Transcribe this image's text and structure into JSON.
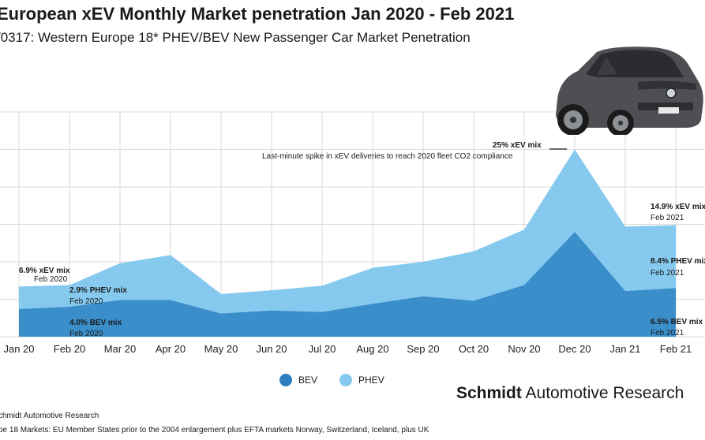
{
  "header": {
    "title": "European xEV Monthly Market penetration Jan 2020 - Feb 2021",
    "subtitle": "/0317: Western Europe 18* PHEV/BEV New Passenger Car Market Penetration"
  },
  "chart_data": {
    "type": "area",
    "stacked": true,
    "categories": [
      "Jan 20",
      "Feb 20",
      "Mar 20",
      "Apr 20",
      "May 20",
      "Jun 20",
      "Jul 20",
      "Aug 20",
      "Sep 20",
      "Oct 20",
      "Nov 20",
      "Dec 20",
      "Jan 21",
      "Feb 21"
    ],
    "series": [
      {
        "name": "BEV",
        "color": "#3a8fcb",
        "values": [
          3.7,
          4.0,
          4.9,
          4.9,
          3.1,
          3.5,
          3.3,
          4.4,
          5.4,
          4.8,
          6.9,
          14.0,
          6.1,
          6.5
        ]
      },
      {
        "name": "PHEV",
        "color": "#86c9ee",
        "values": [
          3.0,
          2.9,
          4.9,
          6.0,
          2.6,
          2.7,
          3.5,
          4.8,
          4.6,
          6.6,
          7.4,
          11.0,
          8.6,
          8.4
        ]
      }
    ],
    "ylim": [
      0,
      30
    ],
    "grid": true,
    "legend_position": "bottom",
    "annotations": {
      "jan_xev": "6.9% xEV mix",
      "jan_xev_date": "Feb 2020",
      "jan_phev": "2.9% PHEV mix",
      "jan_phev_date": "Feb 2020",
      "jan_bev": "4.0% BEV mix",
      "jan_bev_date": "Feb 2020",
      "dec_peak": "25% xEV mix",
      "dec_note": "Last-minute spike in xEV deliveries to reach 2020 fleet CO2 compliance",
      "feb_xev": "14.9% xEV mix",
      "feb_xev_date": "Feb 2021",
      "feb_phev": "8.4% PHEV mix",
      "feb_phev_date": "Feb 2021",
      "feb_bev": "6.5% BEV mix",
      "feb_bev_date": "Feb 2021"
    }
  },
  "legend": {
    "bev": "BEV",
    "phev": "PHEV",
    "bev_color": "#2e7fbd",
    "phev_color": "#86c9ee"
  },
  "brand": {
    "bold": "Schmidt",
    "rest": "Automotive Research"
  },
  "footer": {
    "source": "chmidt Automotive Research",
    "note": "pe 18 Markets: EU Member States prior to the 2004 enlargement plus EFTA markets Norway, Switzerland, Iceland, plus UK"
  },
  "car_icon": "car-icon"
}
